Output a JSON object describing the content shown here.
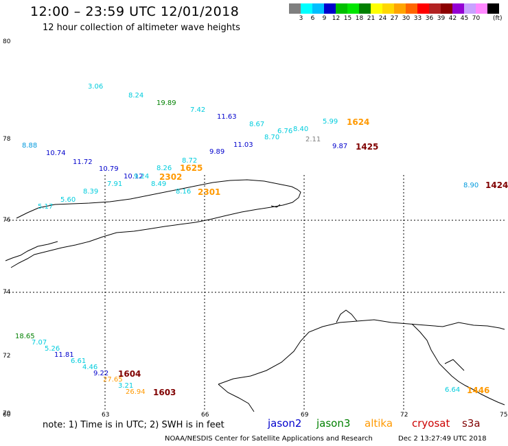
{
  "header": {
    "title": "12:00 – 23:59 UTC 12/01/2018",
    "subtitle": "12 hour collection of altimeter wave heights"
  },
  "legend": {
    "colors": [
      "#7f7f7f",
      "#00ffff",
      "#00bfff",
      "#0000cd",
      "#00bf00",
      "#00e600",
      "#008000",
      "#ffff00",
      "#ffd700",
      "#ffa500",
      "#ff6600",
      "#ff0000",
      "#b22222",
      "#8b0000",
      "#9400d3",
      "#c8a2ff",
      "#ff88ff",
      "#000000"
    ],
    "labels": [
      "3",
      "6",
      "9",
      "12",
      "15",
      "18",
      "21",
      "24",
      "27",
      "30",
      "33",
      "36",
      "39",
      "42",
      "45",
      "70"
    ],
    "unit": "(ft)"
  },
  "axes": {
    "lat": [
      "80",
      "78",
      "76",
      "74",
      "72",
      "70"
    ],
    "lon": [
      "60",
      "63",
      "66",
      "69",
      "72",
      "75"
    ]
  },
  "observations": [
    {
      "v": "3.06",
      "c": "#00ccdd"
    },
    {
      "v": "8.24",
      "c": "#00ccdd"
    },
    {
      "v": "19.89",
      "c": "#008000"
    },
    {
      "v": "7.42",
      "c": "#00ccdd"
    },
    {
      "v": "11.63",
      "c": "#0000cc"
    },
    {
      "v": "8.67",
      "c": "#00ccdd"
    },
    {
      "v": "6.76",
      "c": "#00ccdd"
    },
    {
      "v": "8.40",
      "c": "#00ccdd"
    },
    {
      "v": "5.99",
      "c": "#00ccdd"
    },
    {
      "v": "8.70",
      "c": "#00ccdd"
    },
    {
      "v": "2.11",
      "c": "#808080"
    },
    {
      "v": "9.87",
      "c": "#0000cc"
    },
    {
      "v": "11.03",
      "c": "#0000cc"
    },
    {
      "v": "9.89",
      "c": "#0000cc"
    },
    {
      "v": "8.88",
      "c": "#0099dd"
    },
    {
      "v": "10.74",
      "c": "#0000cc"
    },
    {
      "v": "11.72",
      "c": "#0000cc"
    },
    {
      "v": "10.79",
      "c": "#0000cc"
    },
    {
      "v": "8.72",
      "c": "#00ccdd"
    },
    {
      "v": "8.26",
      "c": "#00ccdd"
    },
    {
      "v": "10.12",
      "c": "#0000cc"
    },
    {
      "v": "9.24",
      "c": "#00ccdd"
    },
    {
      "v": "7.91",
      "c": "#00ccdd"
    },
    {
      "v": "8.49",
      "c": "#00ccdd"
    },
    {
      "v": "8.39",
      "c": "#00ccdd"
    },
    {
      "v": "8.16",
      "c": "#00ccdd"
    },
    {
      "v": "5.60",
      "c": "#00ccdd"
    },
    {
      "v": "5.17",
      "c": "#00ccdd"
    },
    {
      "v": "8.90",
      "c": "#0099dd"
    },
    {
      "v": "18.65",
      "c": "#008000"
    },
    {
      "v": "7.07",
      "c": "#00ccdd"
    },
    {
      "v": "5.26",
      "c": "#00ccdd"
    },
    {
      "v": "11.81",
      "c": "#0000cc"
    },
    {
      "v": "6.61",
      "c": "#00ccdd"
    },
    {
      "v": "4.46",
      "c": "#00ccdd"
    },
    {
      "v": "9.22",
      "c": "#0000cc"
    },
    {
      "v": "27.65",
      "c": "#ff9900"
    },
    {
      "v": "3.21",
      "c": "#00ccdd"
    },
    {
      "v": "26.94",
      "c": "#ff9900"
    },
    {
      "v": "6.64",
      "c": "#00ccdd"
    }
  ],
  "times": [
    {
      "t": "1624",
      "c": "#ff9900"
    },
    {
      "t": "1425",
      "c": "#800000"
    },
    {
      "t": "1625",
      "c": "#ff9900"
    },
    {
      "t": "2302",
      "c": "#ff9900"
    },
    {
      "t": "2301",
      "c": "#ff9900"
    },
    {
      "t": "1424",
      "c": "#800000"
    },
    {
      "t": "1604",
      "c": "#800000"
    },
    {
      "t": "1603",
      "c": "#800000"
    },
    {
      "t": "1446",
      "c": "#ff9900"
    }
  ],
  "footer": {
    "note": "note: 1) Time is in UTC; 2) SWH is in feet",
    "satellites": [
      {
        "name": "jason2",
        "c": "#0000cc"
      },
      {
        "name": "jason3",
        "c": "#008000"
      },
      {
        "name": "altika",
        "c": "#ff9900"
      },
      {
        "name": "cryosat",
        "c": "#cc0000"
      },
      {
        "name": "s3a",
        "c": "#800000"
      }
    ],
    "credit": "NOAA/NESDIS Center for Satellite Applications and Research",
    "stamp": "Dec  2 13:27:49 UTC 2018"
  }
}
